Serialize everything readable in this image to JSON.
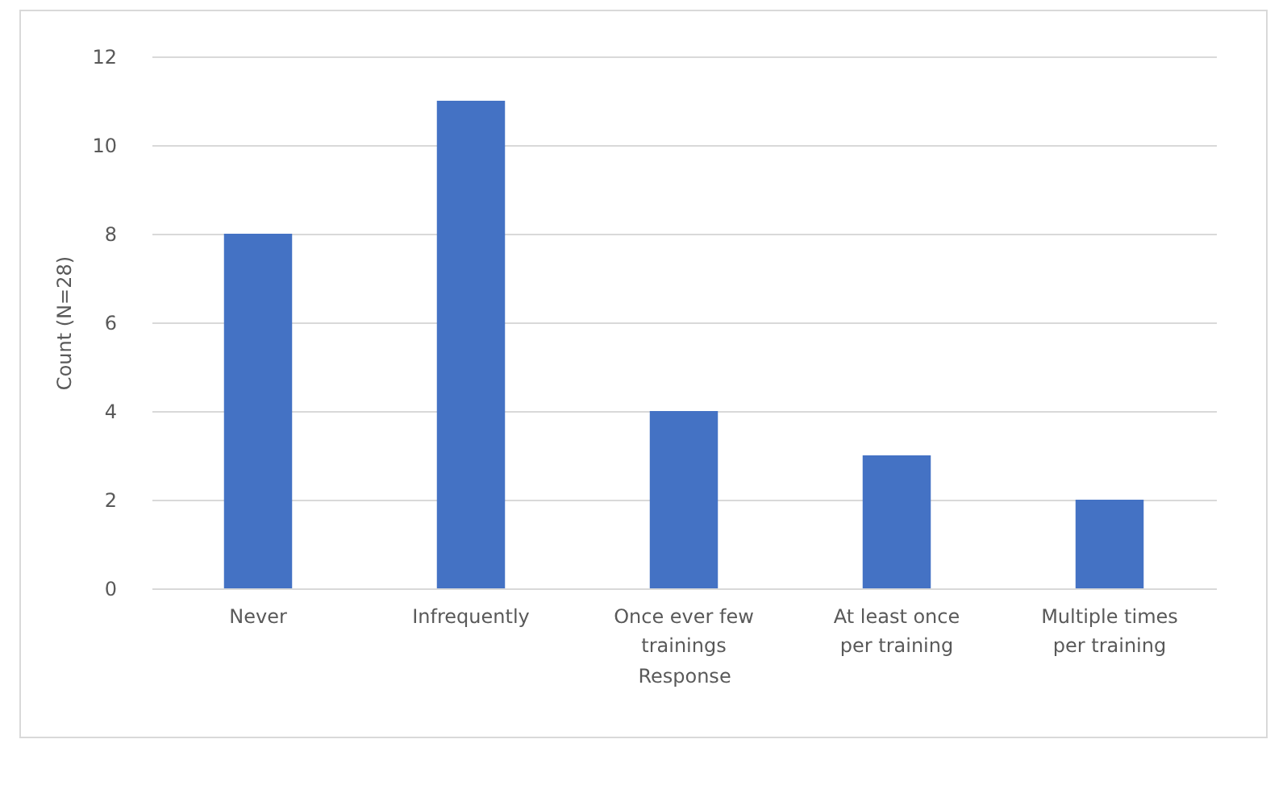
{
  "chart_data": {
    "type": "bar",
    "xlabel": "Response",
    "ylabel": "Count (N=28)",
    "categories": [
      "Never",
      "Infrequently",
      "Once ever few trainings",
      "At least once per training",
      "Multiple times per training"
    ],
    "values": [
      8,
      11,
      4,
      3,
      2
    ],
    "color": "#4472c4",
    "ylim": [
      0,
      12
    ],
    "yticks": [
      0,
      2,
      4,
      6,
      8,
      10,
      12
    ],
    "grid": "y"
  }
}
